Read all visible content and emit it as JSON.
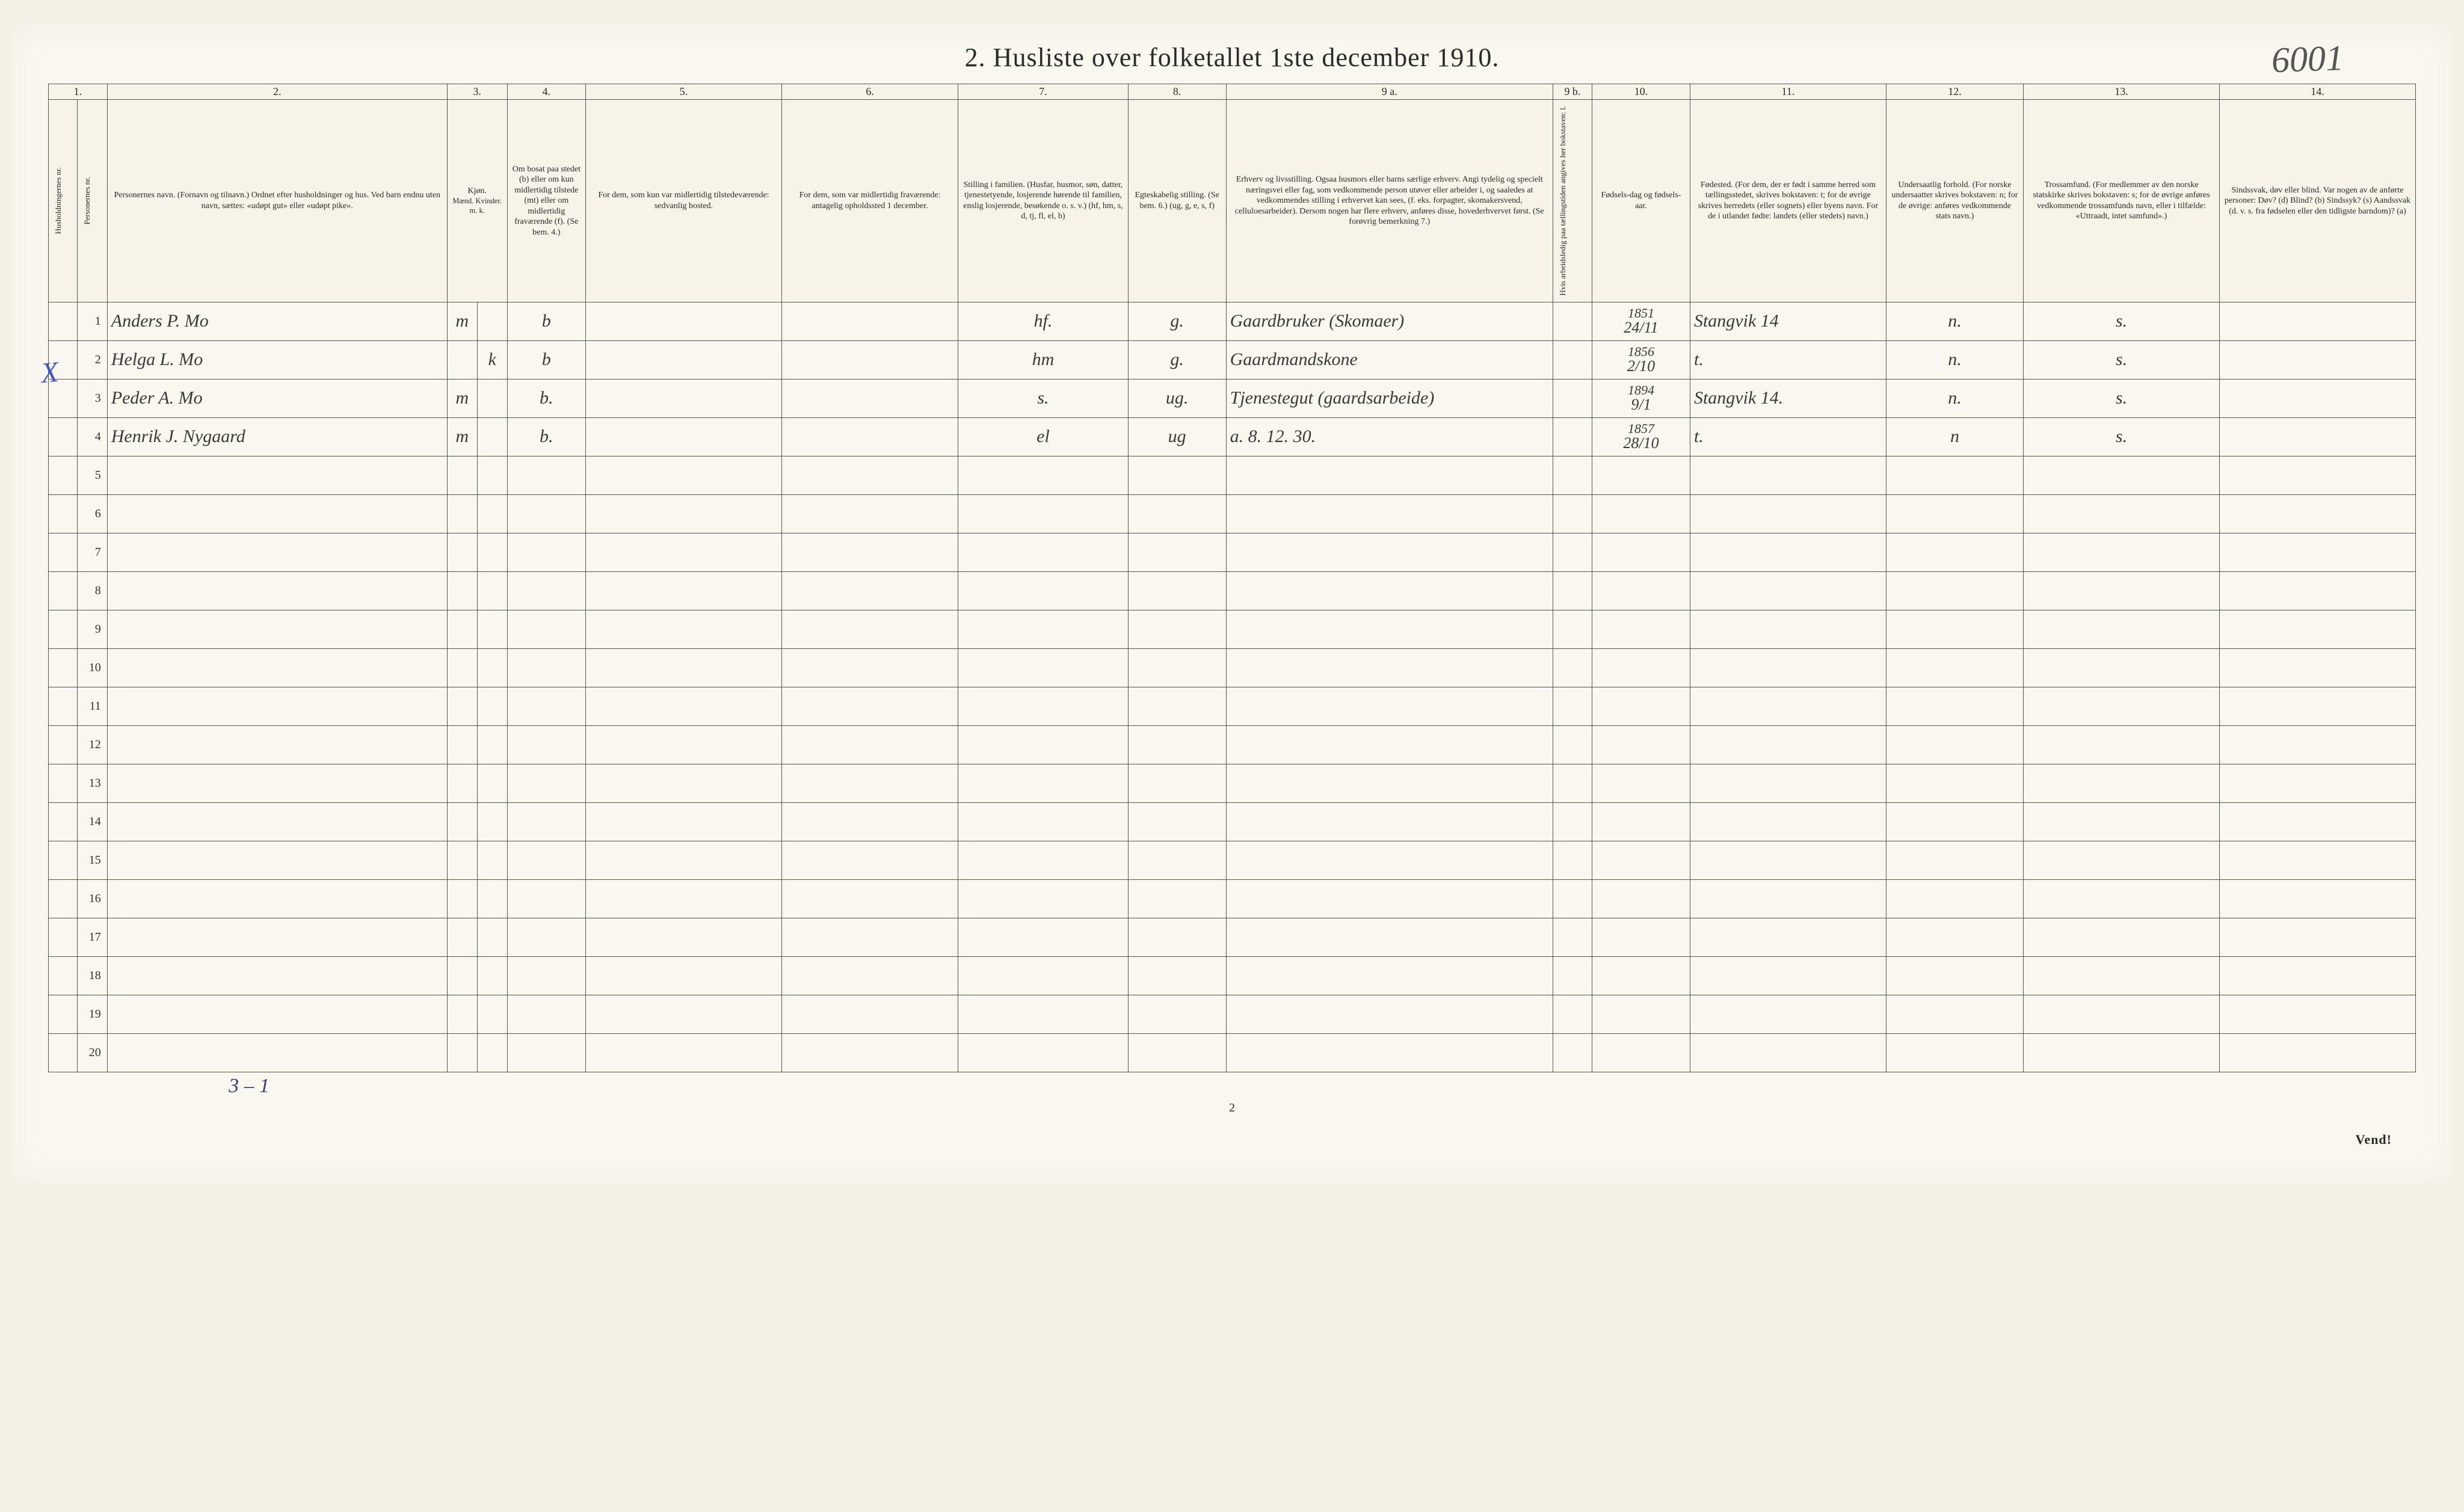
{
  "title": "2.  Husliste over folketallet 1ste december 1910.",
  "corner_annotation": "6001",
  "margin_mark": "X",
  "footer_pagenum": "2",
  "vend": "Vend!",
  "below_table_note": "3 – 1",
  "columns": {
    "nums": [
      "1.",
      "2.",
      "3.",
      "4.",
      "5.",
      "6.",
      "7.",
      "8.",
      "9 a.",
      "9 b.",
      "10.",
      "11.",
      "12.",
      "13.",
      "14."
    ],
    "c1_vert_a": "Husholdningernes nr.",
    "c1_vert_b": "Personernes nr.",
    "c2": "Personernes navn.\n(Fornavn og tilnavn.)\nOrdnet efter husholdninger og hus.\nVed barn endnu uten navn, sættes: «udøpt gut» eller «udøpt pike».",
    "c3": "Kjøn.",
    "c3_sub": "Mænd.  Kvinder.\nm.  k.",
    "c4": "Om bosat paa stedet (b) eller om kun midlertidig tilstede (mt) eller om midlertidig fraværende (f).\n(Se bem. 4.)",
    "c5": "For dem, som kun var midlertidig tilstedeværende:\nsedvanlig bosted.",
    "c6": "For dem, som var midlertidig fraværende:\nantagelig opholdssted 1 december.",
    "c7": "Stilling i familien.\n(Husfar, husmor, søn, datter, tjenestetyende, losjerende hørende til familien, enslig losjerende, besøkende o. s. v.)\n(hf, hm, s, d, tj, fl, el, b)",
    "c8": "Egteskabelig stilling.\n(Se bem. 6.)\n(ug, g, e, s, f)",
    "c9a": "Erhverv og livsstilling.\nOgsaa husmors eller barns særlige erhverv. Angi tydelig og specielt næringsvei eller fag, som vedkommende person utøver eller arbeider i, og saaledes at vedkommendes stilling i erhvervet kan sees, (f. eks. forpagter, skomakersvend, celluloesarbeider). Dersom nogen har flere erhverv, anføres disse, hovederhvervet først.\n(Se forøvrig bemerkning 7.)",
    "c9b_vert": "Hvis arbeidsledig paa tællingstiden angives her bokstaven: l.",
    "c10": "Fødsels-dag og fødsels-aar.",
    "c11": "Fødested.\n(For dem, der er født i samme herred som tællingsstedet, skrives bokstaven: t; for de øvrige skrives herredets (eller sognets) eller byens navn. For de i utlandet fødte: landets (eller stedets) navn.)",
    "c12": "Undersaatlig forhold.\n(For norske undersaatter skrives bokstaven: n; for de øvrige: anføres vedkommende stats navn.)",
    "c13": "Trossamfund.\n(For medlemmer av den norske statskirke skrives bokstaven: s; for de øvrige anføres vedkommende trossamfunds navn, eller i tilfælde: «Uttraadt, intet samfund».)",
    "c14": "Sindssvak, døv eller blind.\nVar nogen av de anførte personer:\nDøv? (d)\nBlind? (b)\nSindssyk? (s)\nAandssvak (d. v. s. fra fødselen eller den tidligste barndom)? (a)"
  },
  "rows": [
    {
      "num": "1",
      "name": "Anders P. Mo",
      "sex_m": "m",
      "sex_k": "",
      "bosat": "b",
      "c5": "",
      "c6": "",
      "stilling": "hf.",
      "egte": "g.",
      "erhverv": "Gaardbruker (Skomaer)",
      "c9b": "",
      "fodsel_top": "1851",
      "fodsel_bot": "24/11",
      "fodested": "Stangvik 14",
      "under": "n.",
      "tros": "s.",
      "c14": ""
    },
    {
      "num": "2",
      "name": "Helga L. Mo",
      "sex_m": "",
      "sex_k": "k",
      "bosat": "b",
      "c5": "",
      "c6": "",
      "stilling": "hm",
      "egte": "g.",
      "erhverv": "Gaardmandskone",
      "c9b": "",
      "fodsel_top": "1856",
      "fodsel_bot": "2/10",
      "fodested": "t.",
      "under": "n.",
      "tros": "s.",
      "c14": ""
    },
    {
      "num": "3",
      "name": "Peder A. Mo",
      "sex_m": "m",
      "sex_k": "",
      "bosat": "b.",
      "c5": "",
      "c6": "",
      "stilling": "s.",
      "egte": "ug.",
      "erhverv": "Tjenestegut (gaardsarbeide)",
      "c9b": "",
      "fodsel_top": "1894",
      "fodsel_bot": "9/1",
      "fodested": "Stangvik 14.",
      "under": "n.",
      "tros": "s.",
      "c14": ""
    },
    {
      "num": "4",
      "name": "Henrik J. Nygaard",
      "sex_m": "m",
      "sex_k": "",
      "bosat": "b.",
      "c5": "",
      "c6": "",
      "stilling": "el",
      "egte": "ug",
      "erhverv": "a.    8. 12. 30.",
      "c9b": "",
      "fodsel_top": "1857",
      "fodsel_bot": "28/10",
      "fodested": "t.",
      "under": "n",
      "tros": "s.",
      "c14": ""
    }
  ],
  "empty_rows": [
    "5",
    "6",
    "7",
    "8",
    "9",
    "10",
    "11",
    "12",
    "13",
    "14",
    "15",
    "16",
    "17",
    "18",
    "19",
    "20"
  ],
  "colors": {
    "paper": "#faf7ef",
    "ink": "#2a2a2a",
    "rule": "#555555",
    "pencil_blue": "#4257c9"
  }
}
